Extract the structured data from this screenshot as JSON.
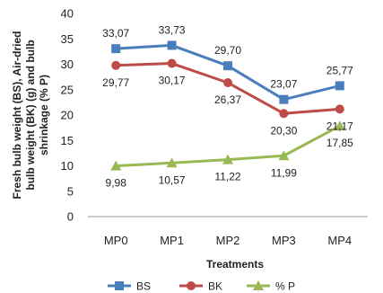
{
  "chart_data": {
    "type": "line",
    "categories": [
      "MP0",
      "MP1",
      "MP2",
      "MP3",
      "MP4"
    ],
    "series": [
      {
        "name": "BS",
        "color": "#4A7EBB",
        "marker": "square",
        "values": [
          33.07,
          33.73,
          29.7,
          23.07,
          25.77
        ],
        "labels": [
          "33,07",
          "33,73",
          "29,70",
          "23,07",
          "25,77"
        ],
        "label_position": "above"
      },
      {
        "name": "BK",
        "color": "#BE4B48",
        "marker": "circle",
        "values": [
          29.77,
          30.17,
          26.37,
          20.3,
          21.17
        ],
        "labels": [
          "29,77",
          "30,17",
          "26,37",
          "20,30",
          "21,17"
        ],
        "label_position": "below"
      },
      {
        "name": "% P",
        "color": "#98B954",
        "marker": "triangle",
        "values": [
          9.98,
          10.57,
          11.22,
          11.99,
          17.85
        ],
        "labels": [
          "9,98",
          "10,57",
          "11,22",
          "11,99",
          "17,85"
        ],
        "label_position": "below"
      }
    ],
    "ylim": [
      0,
      40
    ],
    "yticks": [
      "0",
      "5",
      "10",
      "15",
      "20",
      "25",
      "30",
      "35",
      "40"
    ],
    "xlabel": "Treatments",
    "ylabel_lines": [
      "Fresh bulb weight (BS), Air-dried",
      "bulb weight (BK) (g) and bulb",
      "shrinkage (% P)"
    ],
    "grid": false,
    "legend_placement": "bottom"
  }
}
